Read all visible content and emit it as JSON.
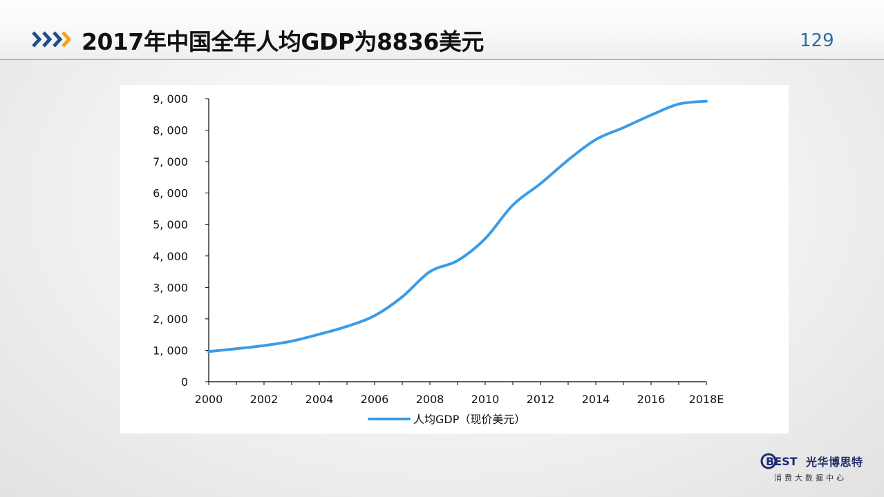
{
  "slide": {
    "title": "2017年中国全年人均GDP为8836美元",
    "page_number": "129",
    "accent_colors": {
      "chevron_dark": "#1f4e8c",
      "chevron_light": "#f0a020",
      "series": "#3b9ce8"
    }
  },
  "logo": {
    "brand_letters": "BEST",
    "brand_text": "光华博思特",
    "subtitle": "消费大数据中心"
  },
  "chart_data": {
    "type": "line",
    "title": "",
    "xlabel": "",
    "ylabel": "",
    "x": [
      2000,
      2001,
      2002,
      2003,
      2004,
      2005,
      2006,
      2007,
      2008,
      2009,
      2010,
      2011,
      2012,
      2013,
      2014,
      2015,
      2016,
      2017,
      2018
    ],
    "xtick_labels": [
      "2000",
      "2002",
      "2004",
      "2006",
      "2008",
      "2010",
      "2012",
      "2014",
      "2016",
      "2018E"
    ],
    "ytick_labels": [
      "0",
      "1, 000",
      "2, 000",
      "3, 000",
      "4, 000",
      "5, 000",
      "6, 000",
      "7, 000",
      "8, 000",
      "9, 000"
    ],
    "ylim": [
      0,
      9000
    ],
    "grid": false,
    "legend_position": "bottom",
    "series": [
      {
        "name": "人均GDP（现价美元）",
        "color": "#3b9ce8",
        "values": [
          960,
          1050,
          1150,
          1290,
          1510,
          1760,
          2100,
          2700,
          3500,
          3850,
          4550,
          5620,
          6300,
          7050,
          7700,
          8080,
          8480,
          8830,
          8920
        ]
      }
    ]
  }
}
